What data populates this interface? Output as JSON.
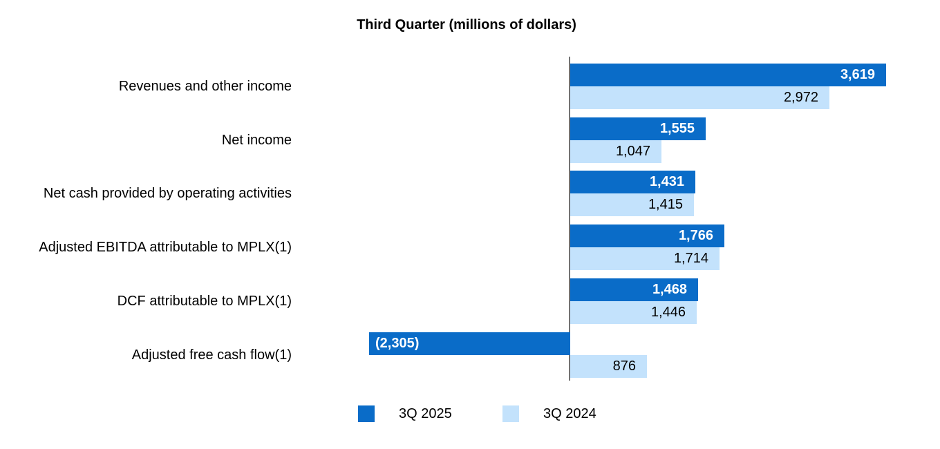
{
  "chart_data": {
    "type": "bar",
    "orientation": "horizontal",
    "title": "Third Quarter (millions of dollars)",
    "categories": [
      "Revenues and other income",
      "Net income",
      "Net cash provided by operating activities",
      "Adjusted EBITDA attributable to MPLX(1)",
      "DCF attributable to MPLX(1)",
      "Adjusted free cash flow(1)"
    ],
    "series": [
      {
        "name": "3Q 2025",
        "color": "#0a6cc8",
        "label_color": "#ffffff",
        "label_weight": "bold",
        "values": [
          3619,
          1555,
          1431,
          1766,
          1468,
          -2305
        ],
        "labels": [
          "3,619",
          "1,555",
          "1,431",
          "1,766",
          "1,468",
          "(2,305)"
        ]
      },
      {
        "name": "3Q 2024",
        "color": "#c3e2fc",
        "label_color": "#000000",
        "label_weight": "normal",
        "values": [
          2972,
          1047,
          1415,
          1714,
          1446,
          876
        ],
        "labels": [
          "2,972",
          "1,047",
          "1,415",
          "1,714",
          "1,446",
          "876"
        ]
      }
    ],
    "xlim": [
      -2500,
      3700
    ],
    "grid": false,
    "axis_baseline_color": "#737373",
    "legend_position": "bottom",
    "legend": [
      "3Q 2025",
      "3Q 2024"
    ]
  }
}
